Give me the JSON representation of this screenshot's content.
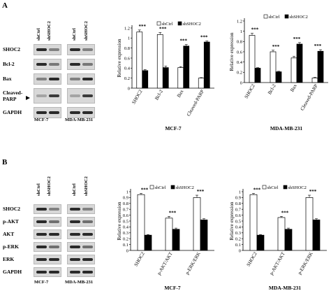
{
  "panels": [
    {
      "letter": "A",
      "lanes": [
        "shCtrl",
        "shSHOC2"
      ],
      "cell_lines": [
        "MCF-7",
        "MDA-MB-231"
      ],
      "blot_rows": [
        "SHOC2",
        "Bcl-2",
        "Bax",
        "Cleaved-PARP",
        "GAPDH"
      ],
      "blot_row_lines": [
        [
          "SHOC2"
        ],
        [
          "Bcl-2"
        ],
        [
          "Bax"
        ],
        [
          "Cleaved-",
          "PARP"
        ],
        [
          "GAPDH"
        ]
      ]
    },
    {
      "letter": "B",
      "lanes": [
        "shCtrl",
        "shSHOC2"
      ],
      "cell_lines": [
        "MCF-7",
        "MDA-MB-231"
      ],
      "blot_rows": [
        "SHOC2",
        "p-AKT",
        "AKT",
        "p-ERK",
        "ERK",
        "GAPDH"
      ],
      "blot_row_lines": [
        [
          "SHOC2"
        ],
        [
          "p-AKT"
        ],
        [
          "AKT"
        ],
        [
          "p-ERK"
        ],
        [
          "ERK"
        ],
        [
          "GAPDH"
        ]
      ]
    }
  ],
  "chart_data": [
    {
      "type": "bar",
      "panel": "A",
      "title": "MCF-7",
      "ylabel": "Relative expression",
      "categories": [
        "SHOC2",
        "Bcl-2",
        "Bax",
        "Cleaved-PARP"
      ],
      "ylim": [
        0,
        1.2
      ],
      "yticks": [
        0,
        0.2,
        0.4,
        0.6,
        0.8,
        1,
        1.2
      ],
      "legend": "top-right",
      "series": [
        {
          "name": "shCtrl",
          "values": [
            1.12,
            1.07,
            0.41,
            0.2
          ],
          "errors": [
            0.04,
            0.04,
            0.02,
            0.01
          ],
          "color": "#ffffff"
        },
        {
          "name": "shSHOC2",
          "values": [
            0.35,
            0.41,
            0.84,
            0.92
          ],
          "errors": [
            0.02,
            0.03,
            0.03,
            0.02
          ],
          "color": "#000000"
        }
      ],
      "annotations": [
        "***",
        "***",
        "***",
        "***"
      ]
    },
    {
      "type": "bar",
      "panel": "A",
      "title": "MDA-MB-231",
      "ylabel": "Relative expression",
      "categories": [
        "SHOC2",
        "Bcl-2",
        "Bax",
        "Cleaved-PARP"
      ],
      "ylim": [
        0,
        1.2
      ],
      "yticks": [
        0,
        0.2,
        0.4,
        0.6,
        0.8,
        1,
        1.2
      ],
      "legend": "top-right",
      "series": [
        {
          "name": "shCtrl",
          "values": [
            0.92,
            0.6,
            0.48,
            0.09
          ],
          "errors": [
            0.04,
            0.03,
            0.03,
            0.01
          ],
          "color": "#ffffff"
        },
        {
          "name": "shSHOC2",
          "values": [
            0.28,
            0.21,
            0.75,
            0.61
          ],
          "errors": [
            0.01,
            0.01,
            0.03,
            0.03
          ],
          "color": "#000000"
        }
      ],
      "annotations": [
        "***",
        "***",
        "***",
        "***"
      ]
    },
    {
      "type": "bar",
      "panel": "B",
      "title": "MCF-7",
      "ylabel": "Relative expression",
      "categories": [
        "SHOC2",
        "p-AKT/AKT",
        "p-ERK/ERK"
      ],
      "ylim": [
        0,
        1
      ],
      "yticks": [
        0,
        0.1,
        0.2,
        0.3,
        0.4,
        0.5,
        0.6,
        0.7,
        0.8,
        0.9,
        1
      ],
      "legend": "top-right",
      "series": [
        {
          "name": "shCtrl",
          "values": [
            0.95,
            0.55,
            0.9
          ],
          "errors": [
            0.02,
            0.03,
            0.04
          ],
          "color": "#ffffff"
        },
        {
          "name": "shSHOC2",
          "values": [
            0.26,
            0.36,
            0.52
          ],
          "errors": [
            0.01,
            0.02,
            0.02
          ],
          "color": "#000000"
        }
      ],
      "annotations": [
        "***",
        "***",
        "***"
      ]
    },
    {
      "type": "bar",
      "panel": "B",
      "title": "MDA-MB-231",
      "ylabel": "Relative expression",
      "categories": [
        "SHOC2",
        "p-AKT/AKT",
        "p-ERK/ERK"
      ],
      "ylim": [
        0,
        1
      ],
      "yticks": [
        0,
        0.1,
        0.2,
        0.3,
        0.4,
        0.5,
        0.6,
        0.7,
        0.8,
        0.9,
        1
      ],
      "legend": "top-right",
      "series": [
        {
          "name": "shCtrl",
          "values": [
            0.95,
            0.56,
            0.9
          ],
          "errors": [
            0.02,
            0.02,
            0.04
          ],
          "color": "#ffffff"
        },
        {
          "name": "shSHOC2",
          "values": [
            0.26,
            0.36,
            0.52
          ],
          "errors": [
            0.01,
            0.02,
            0.02
          ],
          "color": "#000000"
        }
      ],
      "annotations": [
        "***",
        "***",
        "***"
      ]
    }
  ]
}
